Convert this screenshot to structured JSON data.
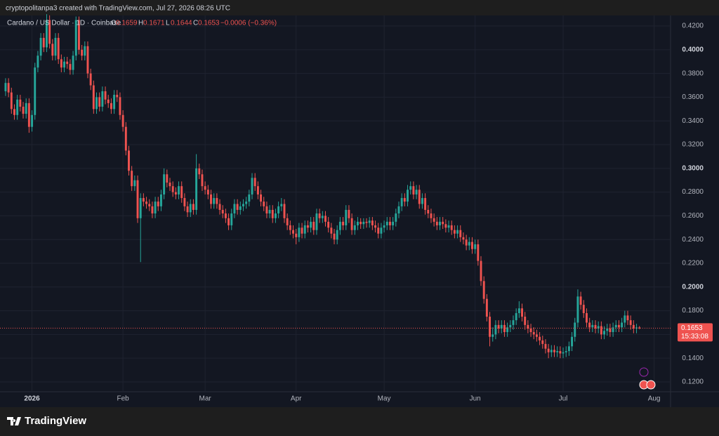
{
  "header": {
    "text": "cryptopolitanpa3 created with TradingView.com, Jul 27, 2026 08:26 UTC"
  },
  "footer": {
    "logo": "TradingView"
  },
  "chart_data": {
    "type": "candlestick",
    "title": "Cardano / US Dollar · 1D · Coinbase",
    "ohlc_labels": [
      "O",
      "H",
      "L",
      "C"
    ],
    "change_label": "−0.0006 (−0.36%)",
    "countdown": "15:33:08",
    "up_color": "#26a69a",
    "down_color": "#ef5350",
    "grid": true,
    "ylim": [
      0.1117,
      0.4289
    ],
    "yticks": [
      {
        "value": 0.12,
        "label": "0.1200"
      },
      {
        "value": 0.14,
        "label": "0.1400"
      },
      {
        "value": 0.16,
        "label": "0.1600"
      },
      {
        "value": 0.18,
        "label": "0.1800"
      },
      {
        "value": 0.2,
        "label": "0.2000"
      },
      {
        "value": 0.22,
        "label": "0.2200"
      },
      {
        "value": 0.24,
        "label": "0.2400"
      },
      {
        "value": 0.26,
        "label": "0.2600"
      },
      {
        "value": 0.28,
        "label": "0.2800"
      },
      {
        "value": 0.3,
        "label": "0.3000"
      },
      {
        "value": 0.32,
        "label": "0.3200"
      },
      {
        "value": 0.34,
        "label": "0.3400"
      },
      {
        "value": 0.36,
        "label": "0.3600"
      },
      {
        "value": 0.38,
        "label": "0.3800"
      },
      {
        "value": 0.4,
        "label": "0.4000"
      },
      {
        "value": 0.42,
        "label": "0.4200"
      }
    ],
    "xlim": [
      -1.9,
      226.6
    ],
    "xticks": [
      {
        "value": 9,
        "label": "2026"
      },
      {
        "value": 40,
        "label": "Feb"
      },
      {
        "value": 68,
        "label": "Mar"
      },
      {
        "value": 99,
        "label": "Apr"
      },
      {
        "value": 129,
        "label": "May"
      },
      {
        "value": 160,
        "label": "Jun"
      },
      {
        "value": 190,
        "label": "Jul"
      },
      {
        "value": 221,
        "label": "Aug"
      }
    ],
    "open": [
      0.365,
      0.372,
      0.364,
      0.35,
      0.345,
      0.358,
      0.352,
      0.346,
      0.355,
      0.335,
      0.345,
      0.385,
      0.395,
      0.41,
      0.402,
      0.425,
      0.405,
      0.395,
      0.41,
      0.392,
      0.385,
      0.39,
      0.388,
      0.383,
      0.395,
      0.425,
      0.4,
      0.395,
      0.403,
      0.38,
      0.37,
      0.35,
      0.36,
      0.352,
      0.365,
      0.358,
      0.355,
      0.35,
      0.362,
      0.36,
      0.345,
      0.335,
      0.315,
      0.298,
      0.285,
      0.29,
      0.258,
      0.275,
      0.272,
      0.27,
      0.268,
      0.262,
      0.272,
      0.268,
      0.278,
      0.295,
      0.288,
      0.285,
      0.28,
      0.278,
      0.285,
      0.275,
      0.268,
      0.263,
      0.27,
      0.265,
      0.3,
      0.295,
      0.285,
      0.282,
      0.278,
      0.27,
      0.275,
      0.27,
      0.265,
      0.262,
      0.258,
      0.252,
      0.262,
      0.27,
      0.265,
      0.268,
      0.27,
      0.272,
      0.278,
      0.292,
      0.285,
      0.278,
      0.272,
      0.268,
      0.262,
      0.265,
      0.258,
      0.262,
      0.268,
      0.27,
      0.258,
      0.252,
      0.248,
      0.245,
      0.242,
      0.25,
      0.245,
      0.252,
      0.25,
      0.255,
      0.248,
      0.262,
      0.258,
      0.26,
      0.255,
      0.25,
      0.245,
      0.24,
      0.248,
      0.255,
      0.252,
      0.265,
      0.258,
      0.248,
      0.252,
      0.255,
      0.253,
      0.255,
      0.254,
      0.256,
      0.252,
      0.25,
      0.245,
      0.25,
      0.252,
      0.255,
      0.252,
      0.255,
      0.262,
      0.268,
      0.275,
      0.272,
      0.282,
      0.285,
      0.278,
      0.282,
      0.27,
      0.275,
      0.265,
      0.262,
      0.258,
      0.255,
      0.252,
      0.255,
      0.253,
      0.25,
      0.252,
      0.248,
      0.245,
      0.248,
      0.242,
      0.24,
      0.235,
      0.238,
      0.232,
      0.236,
      0.222,
      0.205,
      0.19,
      0.175,
      0.158,
      0.16,
      0.168,
      0.165,
      0.168,
      0.162,
      0.166,
      0.168,
      0.172,
      0.178,
      0.182,
      0.175,
      0.168,
      0.165,
      0.162,
      0.16,
      0.158,
      0.155,
      0.152,
      0.148,
      0.145,
      0.147,
      0.145,
      0.146,
      0.144,
      0.145,
      0.146,
      0.15,
      0.158,
      0.17,
      0.192,
      0.185,
      0.178,
      0.17,
      0.166,
      0.168,
      0.165,
      0.167,
      0.16,
      0.163,
      0.165,
      0.162,
      0.166,
      0.168,
      0.166,
      0.17,
      0.176,
      0.172,
      0.168,
      0.165,
      0.1659
    ],
    "high": [
      0.376,
      0.376,
      0.368,
      0.354,
      0.362,
      0.362,
      0.356,
      0.359,
      0.359,
      0.349,
      0.389,
      0.399,
      0.414,
      0.414,
      0.43,
      0.429,
      0.409,
      0.414,
      0.414,
      0.396,
      0.394,
      0.394,
      0.392,
      0.399,
      0.428,
      0.428,
      0.404,
      0.407,
      0.407,
      0.384,
      0.374,
      0.364,
      0.364,
      0.369,
      0.369,
      0.362,
      0.359,
      0.366,
      0.366,
      0.364,
      0.349,
      0.339,
      0.319,
      0.302,
      0.294,
      0.294,
      0.279,
      0.279,
      0.276,
      0.274,
      0.272,
      0.276,
      0.276,
      0.282,
      0.3,
      0.299,
      0.292,
      0.289,
      0.284,
      0.289,
      0.289,
      0.279,
      0.272,
      0.274,
      0.274,
      0.312,
      0.304,
      0.299,
      0.289,
      0.286,
      0.282,
      0.279,
      0.279,
      0.274,
      0.269,
      0.266,
      0.262,
      0.266,
      0.274,
      0.274,
      0.272,
      0.274,
      0.276,
      0.282,
      0.296,
      0.296,
      0.289,
      0.282,
      0.276,
      0.272,
      0.269,
      0.269,
      0.266,
      0.272,
      0.275,
      0.274,
      0.262,
      0.256,
      0.252,
      0.249,
      0.254,
      0.254,
      0.256,
      0.256,
      0.259,
      0.259,
      0.266,
      0.266,
      0.264,
      0.264,
      0.259,
      0.254,
      0.249,
      0.252,
      0.259,
      0.259,
      0.269,
      0.269,
      0.262,
      0.256,
      0.259,
      0.258,
      0.258,
      0.258,
      0.259,
      0.259,
      0.256,
      0.254,
      0.254,
      0.256,
      0.259,
      0.259,
      0.259,
      0.266,
      0.272,
      0.279,
      0.279,
      0.286,
      0.289,
      0.289,
      0.286,
      0.286,
      0.279,
      0.279,
      0.269,
      0.266,
      0.262,
      0.259,
      0.259,
      0.259,
      0.257,
      0.256,
      0.256,
      0.252,
      0.252,
      0.252,
      0.246,
      0.244,
      0.242,
      0.242,
      0.24,
      0.24,
      0.226,
      0.209,
      0.194,
      0.179,
      0.166,
      0.172,
      0.172,
      0.172,
      0.172,
      0.17,
      0.172,
      0.176,
      0.182,
      0.188,
      0.186,
      0.179,
      0.172,
      0.169,
      0.166,
      0.164,
      0.162,
      0.159,
      0.156,
      0.152,
      0.151,
      0.151,
      0.15,
      0.15,
      0.149,
      0.15,
      0.154,
      0.162,
      0.174,
      0.198,
      0.196,
      0.189,
      0.182,
      0.174,
      0.172,
      0.172,
      0.171,
      0.171,
      0.167,
      0.169,
      0.169,
      0.17,
      0.172,
      0.172,
      0.174,
      0.18,
      0.18,
      0.176,
      0.172,
      0.169,
      0.1671
    ],
    "low": [
      0.361,
      0.36,
      0.346,
      0.341,
      0.341,
      0.348,
      0.342,
      0.342,
      0.33,
      0.331,
      0.341,
      0.381,
      0.391,
      0.398,
      0.398,
      0.401,
      0.391,
      0.391,
      0.388,
      0.381,
      0.381,
      0.384,
      0.379,
      0.379,
      0.391,
      0.396,
      0.391,
      0.391,
      0.376,
      0.366,
      0.346,
      0.346,
      0.348,
      0.348,
      0.354,
      0.351,
      0.346,
      0.346,
      0.356,
      0.341,
      0.331,
      0.311,
      0.294,
      0.281,
      0.281,
      0.254,
      0.221,
      0.268,
      0.266,
      0.264,
      0.258,
      0.258,
      0.264,
      0.264,
      0.274,
      0.284,
      0.281,
      0.276,
      0.274,
      0.274,
      0.271,
      0.264,
      0.259,
      0.259,
      0.261,
      0.261,
      0.291,
      0.281,
      0.278,
      0.274,
      0.266,
      0.266,
      0.266,
      0.261,
      0.258,
      0.254,
      0.248,
      0.248,
      0.258,
      0.261,
      0.261,
      0.264,
      0.266,
      0.268,
      0.274,
      0.281,
      0.274,
      0.268,
      0.264,
      0.258,
      0.258,
      0.254,
      0.254,
      0.258,
      0.264,
      0.254,
      0.248,
      0.244,
      0.241,
      0.236,
      0.238,
      0.241,
      0.241,
      0.246,
      0.246,
      0.244,
      0.244,
      0.254,
      0.254,
      0.251,
      0.246,
      0.241,
      0.236,
      0.236,
      0.244,
      0.248,
      0.248,
      0.254,
      0.244,
      0.244,
      0.248,
      0.249,
      0.249,
      0.25,
      0.25,
      0.248,
      0.246,
      0.241,
      0.241,
      0.246,
      0.248,
      0.248,
      0.248,
      0.251,
      0.258,
      0.264,
      0.268,
      0.268,
      0.278,
      0.274,
      0.274,
      0.266,
      0.266,
      0.261,
      0.258,
      0.254,
      0.251,
      0.248,
      0.248,
      0.249,
      0.246,
      0.246,
      0.244,
      0.241,
      0.241,
      0.238,
      0.236,
      0.231,
      0.231,
      0.228,
      0.228,
      0.218,
      0.201,
      0.186,
      0.171,
      0.15,
      0.154,
      0.156,
      0.161,
      0.161,
      0.158,
      0.158,
      0.162,
      0.164,
      0.168,
      0.174,
      0.171,
      0.164,
      0.161,
      0.158,
      0.156,
      0.154,
      0.151,
      0.148,
      0.144,
      0.14,
      0.141,
      0.141,
      0.141,
      0.14,
      0.14,
      0.141,
      0.142,
      0.146,
      0.154,
      0.166,
      0.181,
      0.174,
      0.166,
      0.162,
      0.162,
      0.161,
      0.161,
      0.156,
      0.156,
      0.159,
      0.158,
      0.158,
      0.162,
      0.162,
      0.162,
      0.166,
      0.168,
      0.164,
      0.161,
      0.161,
      0.1644
    ],
    "close": [
      0.372,
      0.364,
      0.35,
      0.345,
      0.358,
      0.352,
      0.346,
      0.355,
      0.335,
      0.345,
      0.385,
      0.395,
      0.41,
      0.402,
      0.425,
      0.405,
      0.395,
      0.41,
      0.392,
      0.385,
      0.39,
      0.388,
      0.383,
      0.395,
      0.425,
      0.4,
      0.395,
      0.403,
      0.38,
      0.37,
      0.35,
      0.36,
      0.352,
      0.365,
      0.358,
      0.355,
      0.35,
      0.362,
      0.36,
      0.345,
      0.335,
      0.315,
      0.298,
      0.285,
      0.29,
      0.258,
      0.275,
      0.272,
      0.27,
      0.268,
      0.262,
      0.272,
      0.268,
      0.278,
      0.295,
      0.288,
      0.285,
      0.28,
      0.278,
      0.285,
      0.275,
      0.268,
      0.263,
      0.27,
      0.265,
      0.3,
      0.295,
      0.285,
      0.282,
      0.278,
      0.27,
      0.275,
      0.27,
      0.265,
      0.262,
      0.258,
      0.252,
      0.262,
      0.27,
      0.265,
      0.268,
      0.27,
      0.272,
      0.278,
      0.292,
      0.285,
      0.278,
      0.272,
      0.268,
      0.262,
      0.265,
      0.258,
      0.262,
      0.268,
      0.27,
      0.258,
      0.252,
      0.248,
      0.245,
      0.242,
      0.25,
      0.245,
      0.252,
      0.25,
      0.255,
      0.248,
      0.262,
      0.258,
      0.26,
      0.255,
      0.25,
      0.245,
      0.24,
      0.248,
      0.255,
      0.252,
      0.265,
      0.258,
      0.248,
      0.252,
      0.255,
      0.253,
      0.255,
      0.254,
      0.256,
      0.252,
      0.25,
      0.245,
      0.25,
      0.252,
      0.255,
      0.252,
      0.255,
      0.262,
      0.268,
      0.275,
      0.272,
      0.282,
      0.285,
      0.278,
      0.282,
      0.27,
      0.275,
      0.265,
      0.262,
      0.258,
      0.255,
      0.252,
      0.255,
      0.253,
      0.25,
      0.252,
      0.248,
      0.245,
      0.248,
      0.242,
      0.24,
      0.235,
      0.238,
      0.232,
      0.236,
      0.222,
      0.205,
      0.19,
      0.175,
      0.158,
      0.16,
      0.168,
      0.165,
      0.168,
      0.162,
      0.166,
      0.168,
      0.172,
      0.178,
      0.182,
      0.175,
      0.168,
      0.165,
      0.162,
      0.16,
      0.158,
      0.155,
      0.152,
      0.148,
      0.145,
      0.147,
      0.145,
      0.146,
      0.144,
      0.145,
      0.146,
      0.15,
      0.158,
      0.17,
      0.192,
      0.185,
      0.178,
      0.17,
      0.166,
      0.168,
      0.165,
      0.167,
      0.16,
      0.163,
      0.165,
      0.162,
      0.166,
      0.168,
      0.166,
      0.17,
      0.176,
      0.172,
      0.168,
      0.165,
      0.1659,
      0.1653
    ]
  }
}
